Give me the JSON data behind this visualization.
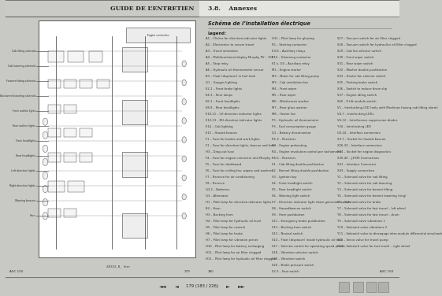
{
  "title_left": "GUIDE DE L’ENTRETIEN",
  "title_right": "3.8.    Annexes",
  "subtitle_right": "Schéma de l’installation électrique",
  "legend_header": "Legend:",
  "bg_color": "#c8c8c4",
  "footer_left": "4B302_B_  htm",
  "left_labels": [
    "Cab lifting solenoid",
    "Cab lowering solenoid",
    "Forward riding solenoid",
    "Backward traveling solenoid",
    "Front outline lights",
    "Rear outline lights",
    "Front headlights",
    "Rear headlights",
    "Left direction lights",
    "Right direction lights",
    "Warning beacon",
    "Horn"
  ],
  "legend_col1": [
    "A1 – Clicker for direction-indicator lights",
    "A2 – Electronics to secure travel",
    "A3 – Travel activation",
    "A4 – Multifunctional display Murphy PV – 101",
    "A5 – Stop relay",
    "A6 – Hydraulic oil thermometer sensor",
    "B3 – Float (displacer) in fuel tank",
    "G1 – Gauges lighting",
    "E2.1 – Front brake lights",
    "E4.3 – Rear lamps",
    "E6.1 – Front headlights",
    "E8.9 – Rear headlights",
    "E10,11 – LH direction indicator lights",
    "E12,13 – RH direction indicator lights",
    "E14 – Cab lighting",
    "E15 – Hazard beacon",
    "F1 – Fuse for brakes and work lights",
    "F1 – Fuse for direction lights, beacon and horn",
    "H3 – Drop-out fuse",
    "F4 – Fuse for engine connector and Murphy",
    "F5 – Fuse for dashboard",
    "F6 – Fuse for ceiling fan, wipers and washers",
    "F7 – Reserve for air conditioning",
    "F8 – Reserve",
    "G3.2 – Batteries",
    "G3 – Alternator",
    "H1 – Pilot lamp for direction-indicator lights",
    "B2 – Horn",
    "H3 – Backing horn",
    "H4 – Pilot lamp for hydraulic oil level",
    "H5 – Pilot lamp for neutral",
    "H6 – Pilot lamp for brake",
    "H7 – Pilot lamp for vibration preset",
    "H10 – Pilot lamp for battery recharging",
    "H11 – Pilot lamp for air filter clogged",
    "H11 – Pilot lamp for hydraulic oil filter clogged"
  ],
  "legend_col2": [
    "H11 – Pilot lamp for glowing",
    "R1 – Starting contactor",
    "K3-8 – Auxiliary relays",
    "K10 – Glooming contactor",
    "K1’s, G3 – Auxiliary relay",
    "M1 – Engine starter",
    "M3 – Motor for cab lifting pump",
    "M3 – Cab ventilation fan",
    "M4 – Front wiper",
    "M5 – Rear wiper",
    "M6 – Windscreen washer",
    "M7 – Rear glass washer",
    "M8 – Heater fan",
    "P3 – Hydraulic oil thermometer",
    "P3 – Fuel consumption gauge",
    "Q1 – Battery disconnector",
    "R1.3 – Resistors",
    "R3 – Engine preheating",
    "R4 – Engine revolution control per tachometer",
    "R6.6 – Resistors",
    "S1 – Cab-lifting double pushbutton",
    "S2 – Bonnet lifting double pushbutton",
    "S3 – Ignition key",
    "S4 – Front headlight switch",
    "S5 – Rear headlight switch",
    "S6 – Warning light switch",
    "S7 – Direction indicator light share generator switch",
    "S8 – Hazardbeacon switch",
    "S9 – Horn pushbutton",
    "S11 – Emergency brake pushbutton",
    "S13 – Backing from switch",
    "S13 – Neutral switch",
    "S14 – Float (displacer) inside hydraulic oil tank",
    "S17 – Selector switch for operating speed preset",
    "S18 – Vibration selector switch",
    "S19 – Vibration switch",
    "S20 – Brake pressure switch",
    "S2.3 – Seat switch"
  ],
  "legend_col3": [
    "S27 – Vacuum switch for air filter clogged",
    "S28 – Vacuum switch for hydraulics oil filter clogged",
    "S29 – Cab fan selector switch",
    "S30 – Front wiper switch",
    "S31 – Rear wiper switch",
    "S32 – Washer double pushbutton",
    "S33 – Heater fan selector switch",
    "S35 – Parking brake switch",
    "S36 – Switch to reduce drum slip",
    "S37 – Engine idling switch",
    "S40 – If tilt module switch",
    "V1 – Interlocking LED (only with Machines having cab lifting alarm)",
    "V4-7 – Interlocking LEDs",
    "V6-12 – Interference suppression diodes",
    "Y34 – Interlocking LED",
    "G3-24 – Interface connectors",
    "X3.7 – Socket for hazard beacon",
    "X26-33 – Interface connectors",
    "X34 – Socket for engine diagnostics",
    "X30-40 – J1939 Connections",
    "X41 – Interface Connector",
    "X43 – Supply connection",
    "Y1 – Solenoid valve for cab lifting",
    "Y2 – Solenoid valve for cab lowering",
    "Y3 – Solenoid valve for bonnet lifting",
    "Y4 – Solenoid valve for bonnet lowering (ring)",
    "Y6 – Solenoid valve for brake",
    "Y7 – Solenoid valve for fast travel – left wheel",
    "Y8 – Solenoid valve for fast travel – drum",
    "Y9 – Solenoid valve vibrations 1",
    "Y10 – Solenoid valve vibrations 2",
    "Y11 – Solenoid valve to disengage inter-module differential simulands",
    "Y13 – Servo valve for travel pump",
    "Y14 – Solenoid valve for fast travel – right wheel"
  ],
  "text_color": "#222222",
  "nav_text": "179 (183 / 226)"
}
